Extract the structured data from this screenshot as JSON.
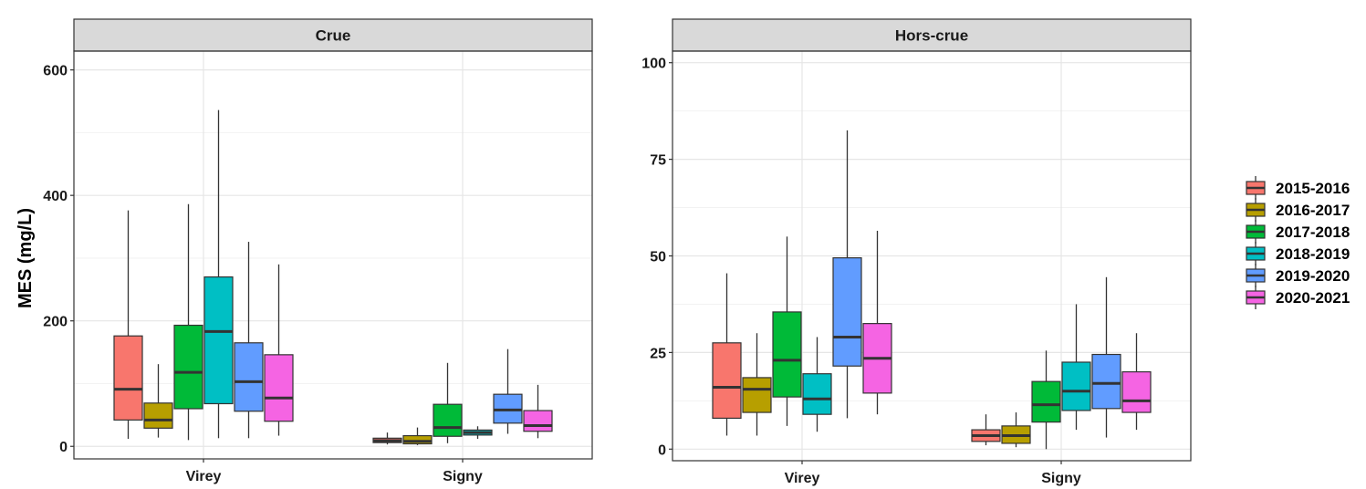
{
  "chart_data": {
    "type": "boxplot",
    "ylabel": "MES (mg/L)",
    "categories": [
      "Virey",
      "Signy"
    ],
    "legend": {
      "position": "right",
      "entries": [
        "2015-2016",
        "2016-2017",
        "2017-2018",
        "2018-2019",
        "2019-2020",
        "2020-2021"
      ],
      "colors": [
        "#F8766D",
        "#B79F00",
        "#00BA38",
        "#00BFC4",
        "#619CFF",
        "#F564E3"
      ]
    },
    "grid": true,
    "panels": [
      {
        "title": "Crue",
        "ylim": [
          -20,
          630
        ],
        "yticks": [
          0,
          200,
          400,
          600
        ],
        "ytick_labels": [
          "0",
          "200",
          "400",
          "600"
        ],
        "boxes": {
          "Virey": [
            {
              "series": "2015-2016",
              "min": 12,
              "q1": 42,
              "median": 91,
              "q3": 176,
              "max": 376
            },
            {
              "series": "2016-2017",
              "min": 14,
              "q1": 29,
              "median": 42,
              "q3": 69,
              "max": 131
            },
            {
              "series": "2017-2018",
              "min": 10,
              "q1": 60,
              "median": 118,
              "q3": 193,
              "max": 386
            },
            {
              "series": "2018-2019",
              "min": 13,
              "q1": 68,
              "median": 183,
              "q3": 270,
              "max": 536
            },
            {
              "series": "2019-2020",
              "min": 13,
              "q1": 56,
              "median": 103,
              "q3": 165,
              "max": 326
            },
            {
              "series": "2020-2021",
              "min": 17,
              "q1": 40,
              "median": 77,
              "q3": 146,
              "max": 290
            }
          ],
          "Signy": [
            {
              "series": "2015-2016",
              "min": 3,
              "q1": 6,
              "median": 9,
              "q3": 13,
              "max": 22
            },
            {
              "series": "2016-2017",
              "min": 2,
              "q1": 4,
              "median": 8,
              "q3": 17,
              "max": 30
            },
            {
              "series": "2017-2018",
              "min": 5,
              "q1": 16,
              "median": 30,
              "q3": 67,
              "max": 133
            },
            {
              "series": "2018-2019",
              "min": 12,
              "q1": 18,
              "median": 22,
              "q3": 26,
              "max": 32
            },
            {
              "series": "2019-2020",
              "min": 20,
              "q1": 37,
              "median": 58,
              "q3": 83,
              "max": 155
            },
            {
              "series": "2020-2021",
              "min": 13,
              "q1": 24,
              "median": 33,
              "q3": 57,
              "max": 98
            }
          ]
        }
      },
      {
        "title": "Hors-crue",
        "ylim": [
          -3,
          103
        ],
        "yticks": [
          0,
          25,
          50,
          75,
          100
        ],
        "ytick_labels": [
          "0",
          "25",
          "50",
          "75",
          "100"
        ],
        "boxes": {
          "Virey": [
            {
              "series": "2015-2016",
              "min": 3.5,
              "q1": 8,
              "median": 16,
              "q3": 27.5,
              "max": 45.5
            },
            {
              "series": "2016-2017",
              "min": 3.5,
              "q1": 9.5,
              "median": 15.5,
              "q3": 18.5,
              "max": 30
            },
            {
              "series": "2017-2018",
              "min": 6,
              "q1": 13.5,
              "median": 23,
              "q3": 35.5,
              "max": 55
            },
            {
              "series": "2018-2019",
              "min": 4.5,
              "q1": 9,
              "median": 13,
              "q3": 19.5,
              "max": 29
            },
            {
              "series": "2019-2020",
              "min": 8,
              "q1": 21.5,
              "median": 29,
              "q3": 49.5,
              "max": 82.5
            },
            {
              "series": "2020-2021",
              "min": 9,
              "q1": 14.5,
              "median": 23.5,
              "q3": 32.5,
              "max": 56.5
            }
          ],
          "Signy": [
            {
              "series": "2015-2016",
              "min": 1,
              "q1": 2,
              "median": 3.5,
              "q3": 5,
              "max": 9
            },
            {
              "series": "2016-2017",
              "min": 0.5,
              "q1": 1.5,
              "median": 3.5,
              "q3": 6,
              "max": 9.5
            },
            {
              "series": "2017-2018",
              "min": 0,
              "q1": 7,
              "median": 11.5,
              "q3": 17.5,
              "max": 25.5
            },
            {
              "series": "2018-2019",
              "min": 5,
              "q1": 10,
              "median": 15,
              "q3": 22.5,
              "max": 37.5
            },
            {
              "series": "2019-2020",
              "min": 3,
              "q1": 10.5,
              "median": 17,
              "q3": 24.5,
              "max": 44.5
            },
            {
              "series": "2020-2021",
              "min": 5,
              "q1": 9.5,
              "median": 12.5,
              "q3": 20,
              "max": 30
            }
          ]
        }
      }
    ]
  }
}
